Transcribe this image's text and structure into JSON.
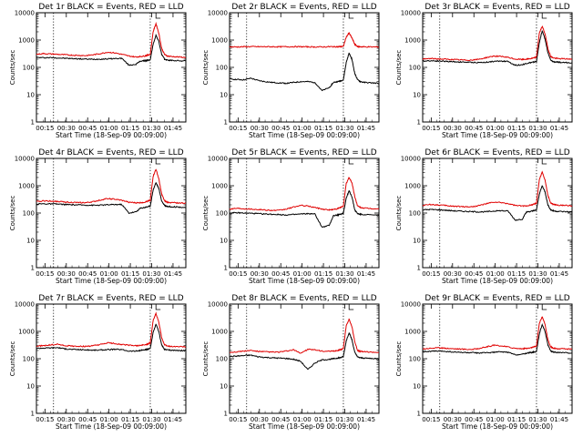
{
  "colors": {
    "events": "#000000",
    "lld": "#e00000",
    "axis": "#000000"
  },
  "chart_data": [
    {
      "type": "line",
      "title": "Det 1r BLACK = Events, RED = LLD",
      "ylabel": "Counts/sec",
      "xlabel": "Start Time (18-Sep-09 00:09:00)",
      "xticks": [
        "00:15",
        "00:30",
        "00:45",
        "01:00",
        "01:15",
        "01:30",
        "01:45"
      ],
      "yticks": [
        "1",
        "10",
        "100",
        "1000",
        "10000"
      ],
      "yscale": "log",
      "ylim": [
        1,
        10000
      ],
      "x_minutes": [
        0,
        5,
        10,
        15,
        20,
        25,
        30,
        35,
        40,
        45,
        50,
        55,
        60,
        65,
        70,
        73,
        76,
        78,
        80,
        82,
        84,
        86,
        88,
        90,
        92,
        95,
        100,
        105
      ],
      "series": [
        {
          "name": "BLACK = Events",
          "values": [
            230,
            225,
            228,
            222,
            215,
            210,
            205,
            200,
            198,
            200,
            205,
            210,
            215,
            120,
            130,
            170,
            175,
            180,
            190,
            700,
            1500,
            900,
            300,
            200,
            185,
            180,
            175,
            170
          ]
        },
        {
          "name": "RED = LLD",
          "values": [
            300,
            320,
            310,
            300,
            290,
            280,
            275,
            270,
            290,
            320,
            360,
            340,
            300,
            260,
            240,
            250,
            260,
            280,
            300,
            2000,
            4000,
            1800,
            500,
            300,
            260,
            250,
            240,
            230
          ]
        }
      ]
    },
    {
      "type": "line",
      "title": "Det 2r BLACK = Events, RED = LLD",
      "ylabel": "Counts/sec",
      "xlabel": "Start Time (18-Sep-09 00:09:00)",
      "xticks": [
        "00:15",
        "00:30",
        "00:45",
        "01:00",
        "01:15",
        "01:30",
        "01:45"
      ],
      "yticks": [
        "1",
        "10",
        "100",
        "1000",
        "10000"
      ],
      "yscale": "log",
      "ylim": [
        1,
        10000
      ],
      "x_minutes": [
        0,
        5,
        10,
        15,
        20,
        25,
        30,
        35,
        40,
        45,
        50,
        55,
        60,
        65,
        70,
        73,
        76,
        78,
        80,
        82,
        84,
        86,
        88,
        90,
        92,
        95,
        100,
        105
      ],
      "series": [
        {
          "name": "BLACK = Events",
          "values": [
            38,
            36,
            35,
            40,
            33,
            30,
            28,
            27,
            26,
            28,
            30,
            30,
            28,
            14,
            18,
            28,
            30,
            32,
            35,
            150,
            330,
            200,
            60,
            35,
            30,
            28,
            27,
            26
          ]
        },
        {
          "name": "RED = LLD",
          "values": [
            560,
            560,
            570,
            575,
            570,
            570,
            570,
            565,
            570,
            575,
            570,
            565,
            560,
            560,
            570,
            570,
            570,
            575,
            580,
            1300,
            1800,
            1200,
            700,
            580,
            570,
            565,
            560,
            560
          ]
        }
      ]
    },
    {
      "type": "line",
      "title": "Det 3r BLACK = Events, RED = LLD",
      "ylabel": "Counts/sec",
      "xlabel": "Start Time (18-Sep-09 00:09:00)",
      "xticks": [
        "00:15",
        "00:30",
        "00:45",
        "01:00",
        "01:15",
        "01:30",
        "01:45"
      ],
      "yticks": [
        "1",
        "10",
        "100",
        "1000",
        "10000"
      ],
      "yscale": "log",
      "ylim": [
        1,
        10000
      ],
      "x_minutes": [
        0,
        5,
        10,
        15,
        20,
        25,
        30,
        35,
        40,
        45,
        50,
        55,
        60,
        65,
        70,
        73,
        76,
        78,
        80,
        82,
        84,
        86,
        88,
        90,
        92,
        95,
        100,
        105
      ],
      "series": [
        {
          "name": "BLACK = Events",
          "values": [
            170,
            175,
            172,
            168,
            162,
            158,
            155,
            152,
            150,
            155,
            165,
            170,
            165,
            120,
            125,
            140,
            150,
            155,
            165,
            800,
            2200,
            1100,
            350,
            180,
            160,
            155,
            150,
            148
          ]
        },
        {
          "name": "RED = LLD",
          "values": [
            200,
            210,
            205,
            200,
            195,
            190,
            185,
            185,
            200,
            230,
            260,
            250,
            230,
            200,
            195,
            200,
            210,
            220,
            240,
            1800,
            3200,
            1700,
            500,
            250,
            220,
            210,
            205,
            200
          ]
        }
      ]
    },
    {
      "type": "line",
      "title": "Det 4r BLACK = Events, RED = LLD",
      "ylabel": "Counts/sec",
      "xlabel": "Start Time (18-Sep-09 00:09:00)",
      "xticks": [
        "00:15",
        "00:30",
        "00:45",
        "01:00",
        "01:15",
        "01:30",
        "01:45"
      ],
      "yticks": [
        "1",
        "10",
        "100",
        "1000",
        "10000"
      ],
      "yscale": "log",
      "ylim": [
        1,
        10000
      ],
      "x_minutes": [
        0,
        5,
        10,
        15,
        20,
        25,
        30,
        35,
        40,
        45,
        50,
        55,
        60,
        65,
        70,
        73,
        76,
        78,
        80,
        82,
        84,
        86,
        88,
        90,
        92,
        95,
        100,
        105
      ],
      "series": [
        {
          "name": "BLACK = Events",
          "values": [
            215,
            218,
            215,
            212,
            205,
            200,
            198,
            195,
            193,
            195,
            200,
            205,
            205,
            100,
            110,
            150,
            160,
            170,
            180,
            700,
            1300,
            800,
            280,
            190,
            175,
            170,
            165,
            160
          ]
        },
        {
          "name": "RED = LLD",
          "values": [
            260,
            280,
            275,
            265,
            255,
            245,
            240,
            240,
            260,
            300,
            340,
            320,
            290,
            250,
            235,
            240,
            250,
            270,
            300,
            2200,
            4000,
            1800,
            500,
            280,
            250,
            240,
            235,
            230
          ]
        }
      ]
    },
    {
      "type": "line",
      "title": "Det 5r BLACK = Events, RED = LLD",
      "ylabel": "Counts/sec",
      "xlabel": "Start Time (18-Sep-09 00:09:00)",
      "xticks": [
        "00:15",
        "00:30",
        "00:45",
        "01:00",
        "01:15",
        "01:30",
        "01:45"
      ],
      "yticks": [
        "1",
        "10",
        "100",
        "1000",
        "10000"
      ],
      "yscale": "log",
      "ylim": [
        1,
        10000
      ],
      "x_minutes": [
        0,
        5,
        10,
        15,
        20,
        25,
        30,
        35,
        40,
        45,
        50,
        55,
        60,
        65,
        70,
        73,
        76,
        78,
        80,
        82,
        84,
        86,
        88,
        90,
        92,
        95,
        100,
        105
      ],
      "series": [
        {
          "name": "BLACK = Events",
          "values": [
            100,
            102,
            100,
            98,
            95,
            92,
            90,
            88,
            85,
            88,
            92,
            95,
            92,
            30,
            35,
            80,
            85,
            90,
            100,
            350,
            650,
            400,
            130,
            95,
            90,
            88,
            85,
            82
          ]
        },
        {
          "name": "RED = LLD",
          "values": [
            140,
            150,
            145,
            140,
            135,
            130,
            125,
            125,
            140,
            165,
            190,
            180,
            160,
            140,
            130,
            135,
            145,
            160,
            180,
            1200,
            2000,
            1300,
            400,
            180,
            160,
            150,
            145,
            140
          ]
        }
      ]
    },
    {
      "type": "line",
      "title": "Det 6r BLACK = Events, RED = LLD",
      "ylabel": "Counts/sec",
      "xlabel": "Start Time (18-Sep-09 00:09:00)",
      "xticks": [
        "00:15",
        "00:30",
        "00:45",
        "01:00",
        "01:15",
        "01:30",
        "01:45"
      ],
      "yticks": [
        "1",
        "10",
        "100",
        "1000",
        "10000"
      ],
      "yscale": "log",
      "ylim": [
        1,
        10000
      ],
      "x_minutes": [
        0,
        5,
        10,
        15,
        20,
        25,
        30,
        35,
        40,
        45,
        50,
        55,
        60,
        65,
        70,
        73,
        76,
        78,
        80,
        82,
        84,
        86,
        88,
        90,
        92,
        95,
        100,
        105
      ],
      "series": [
        {
          "name": "BLACK = Events",
          "values": [
            130,
            135,
            132,
            128,
            122,
            118,
            115,
            112,
            110,
            112,
            118,
            122,
            118,
            55,
            60,
            110,
            115,
            120,
            130,
            500,
            1000,
            600,
            200,
            130,
            120,
            115,
            112,
            110
          ]
        },
        {
          "name": "RED = LLD",
          "values": [
            190,
            205,
            200,
            190,
            180,
            175,
            170,
            170,
            190,
            220,
            250,
            240,
            220,
            190,
            180,
            185,
            195,
            210,
            230,
            1700,
            3200,
            1600,
            450,
            230,
            205,
            195,
            190,
            185
          ]
        }
      ]
    },
    {
      "type": "line",
      "title": "Det 7r BLACK = Events, RED = LLD",
      "ylabel": "Counts/sec",
      "xlabel": "Start Time (18-Sep-09 00:09:00)",
      "xticks": [
        "00:15",
        "00:30",
        "00:45",
        "01:00",
        "01:15",
        "01:30",
        "01:45"
      ],
      "yticks": [
        "1",
        "10",
        "100",
        "1000",
        "10000"
      ],
      "yscale": "log",
      "ylim": [
        1,
        10000
      ],
      "x_minutes": [
        0,
        5,
        10,
        15,
        20,
        25,
        30,
        35,
        40,
        45,
        50,
        55,
        60,
        65,
        70,
        73,
        76,
        78,
        80,
        82,
        84,
        86,
        88,
        90,
        92,
        95,
        100,
        105
      ],
      "series": [
        {
          "name": "BLACK = Events",
          "values": [
            240,
            245,
            250,
            255,
            230,
            220,
            215,
            210,
            205,
            208,
            215,
            220,
            215,
            190,
            190,
            200,
            210,
            220,
            240,
            900,
            1800,
            1000,
            320,
            220,
            210,
            205,
            200,
            195
          ]
        },
        {
          "name": "RED = LLD",
          "values": [
            290,
            300,
            320,
            340,
            300,
            290,
            285,
            280,
            300,
            330,
            380,
            360,
            330,
            310,
            300,
            305,
            320,
            340,
            380,
            2500,
            4500,
            2200,
            600,
            320,
            290,
            280,
            275,
            270
          ]
        }
      ]
    },
    {
      "type": "line",
      "title": "Det 8r BLACK = Events, RED = LLD",
      "ylabel": "Counts/sec",
      "xlabel": "Start Time (18-Sep-09 00:09:00)",
      "xticks": [
        "00:15",
        "00:30",
        "00:45",
        "01:00",
        "01:15",
        "01:30",
        "01:45"
      ],
      "yticks": [
        "1",
        "10",
        "100",
        "1000",
        "10000"
      ],
      "yscale": "log",
      "ylim": [
        1,
        10000
      ],
      "x_minutes": [
        0,
        5,
        10,
        15,
        20,
        25,
        30,
        35,
        40,
        45,
        50,
        55,
        60,
        65,
        70,
        73,
        76,
        78,
        80,
        82,
        84,
        86,
        88,
        90,
        92,
        95,
        100,
        105
      ],
      "series": [
        {
          "name": "BLACK = Events",
          "values": [
            120,
            125,
            130,
            135,
            118,
            112,
            108,
            105,
            102,
            95,
            80,
            40,
            70,
            90,
            95,
            100,
            105,
            110,
            120,
            450,
            900,
            500,
            170,
            115,
            108,
            105,
            102,
            100
          ]
        },
        {
          "name": "RED = LLD",
          "values": [
            170,
            180,
            190,
            200,
            185,
            180,
            175,
            175,
            190,
            210,
            160,
            220,
            210,
            190,
            185,
            190,
            200,
            215,
            240,
            1600,
            2800,
            1500,
            420,
            200,
            185,
            180,
            175,
            170
          ]
        }
      ]
    },
    {
      "type": "line",
      "title": "Det 9r BLACK = Events, RED = LLD",
      "ylabel": "Counts/sec",
      "xlabel": "Start Time (18-Sep-09 00:09:00)",
      "xticks": [
        "00:15",
        "00:30",
        "00:45",
        "01:00",
        "01:15",
        "01:30",
        "01:45"
      ],
      "yticks": [
        "1",
        "10",
        "100",
        "1000",
        "10000"
      ],
      "yscale": "log",
      "ylim": [
        1,
        10000
      ],
      "x_minutes": [
        0,
        5,
        10,
        15,
        20,
        25,
        30,
        35,
        40,
        45,
        50,
        55,
        60,
        65,
        70,
        73,
        76,
        78,
        80,
        82,
        84,
        86,
        88,
        90,
        92,
        95,
        100,
        105
      ],
      "series": [
        {
          "name": "BLACK = Events",
          "values": [
            180,
            185,
            190,
            188,
            178,
            172,
            168,
            165,
            162,
            165,
            172,
            178,
            172,
            140,
            145,
            160,
            168,
            175,
            185,
            800,
            1800,
            1000,
            320,
            190,
            175,
            170,
            165,
            162
          ]
        },
        {
          "name": "RED = LLD",
          "values": [
            230,
            240,
            250,
            245,
            235,
            228,
            222,
            220,
            240,
            270,
            310,
            295,
            270,
            240,
            232,
            238,
            250,
            268,
            295,
            2000,
            3500,
            1800,
            500,
            270,
            240,
            232,
            228,
            225
          ]
        }
      ]
    }
  ]
}
